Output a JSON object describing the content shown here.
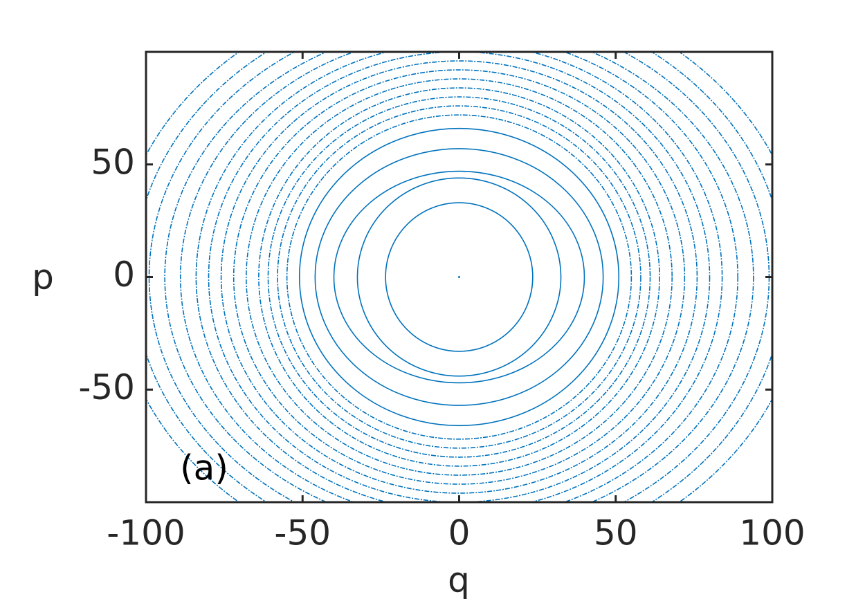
{
  "chart_data": {
    "type": "ellipse-rings",
    "xlabel": "q",
    "ylabel": "p",
    "annotation": "(a)",
    "color": "#0072bd",
    "rings": {
      "q": [
        0,
        23.5,
        32.5,
        40,
        46,
        51,
        55,
        58,
        61,
        64,
        68,
        72,
        76,
        80,
        84,
        89,
        94,
        99,
        104,
        110
      ],
      "p": [
        0,
        33,
        44,
        47,
        57,
        66,
        72,
        76,
        80,
        84,
        88,
        92,
        96,
        100,
        104,
        108,
        112,
        118,
        124,
        130
      ]
    },
    "xlim": [
      -100,
      100
    ],
    "ylim": [
      -100,
      100
    ],
    "xticks": [
      -100,
      -50,
      0,
      50,
      100
    ],
    "yticks": [
      -50,
      0,
      50
    ]
  }
}
